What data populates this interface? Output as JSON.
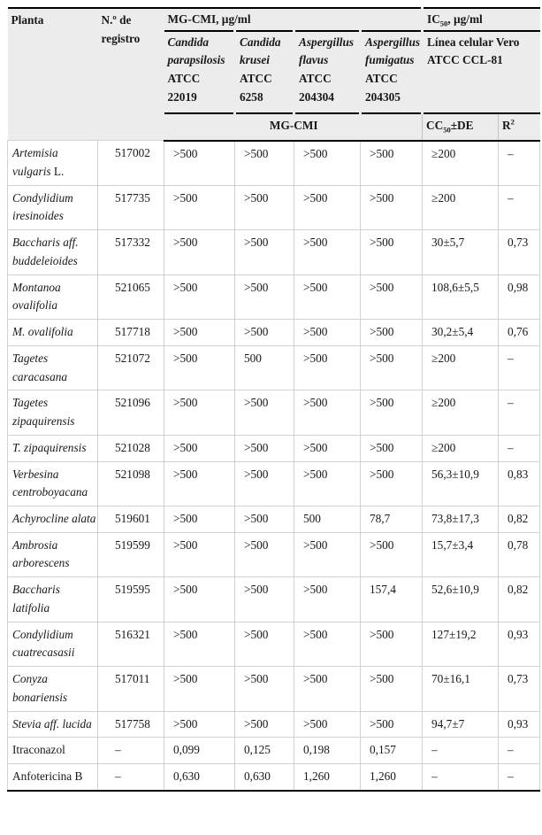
{
  "colors": {
    "header_background": "#ececec",
    "heavy_rule": "#000000",
    "grid_line": "#d2d2d2",
    "text": "#181818"
  },
  "table": {
    "header": {
      "planta": "Planta",
      "registro": "N.º de registro",
      "mgcmi_group": "MG-CMI, µg/ml",
      "ic50": {
        "base": "IC",
        "sub": "50",
        "rest": ", µg/ml"
      },
      "species": [
        {
          "italic": "Candida parapsilosis",
          "roman": "ATCC 22019"
        },
        {
          "italic": "Candida krusei",
          "roman": "ATCC 6258"
        },
        {
          "italic": "Aspergillus flavus",
          "roman": "ATCC 204304"
        },
        {
          "italic": "Aspergillus fumigatus",
          "roman": "ATCC 204305"
        }
      ],
      "vero": "Línea celular Vero ATCC CCL-81",
      "sub_mgcmi": "MG-CMI",
      "cc50": {
        "base": "CC",
        "sub": "50",
        "rest": "±DE"
      },
      "r2": {
        "base": "R",
        "sup": "2"
      }
    },
    "rows": [
      {
        "planta_italic": "Artemisia vulgaris",
        "planta_roman": "L.",
        "registro": "517002",
        "c_parapsilosis": ">500",
        "c_krusei": ">500",
        "a_flavus": ">500",
        "a_fumigatus": ">500",
        "cc50_de": "≥200",
        "r2": "–"
      },
      {
        "planta_italic": "Condylidium iresinoides",
        "planta_roman": "",
        "registro": "517735",
        "c_parapsilosis": ">500",
        "c_krusei": ">500",
        "a_flavus": ">500",
        "a_fumigatus": ">500",
        "cc50_de": "≥200",
        "r2": "–"
      },
      {
        "planta_italic": "Baccharis aff. buddeleioides",
        "planta_roman": "",
        "registro": "517332",
        "c_parapsilosis": ">500",
        "c_krusei": ">500",
        "a_flavus": ">500",
        "a_fumigatus": ">500",
        "cc50_de": "30±5,7",
        "r2": "0,73"
      },
      {
        "planta_italic": "Montanoa ovalifolia",
        "planta_roman": "",
        "registro": "521065",
        "c_parapsilosis": ">500",
        "c_krusei": ">500",
        "a_flavus": ">500",
        "a_fumigatus": ">500",
        "cc50_de": "108,6±5,5",
        "r2": "0,98"
      },
      {
        "planta_italic": "M. ovalifolia",
        "planta_roman": "",
        "registro": "517718",
        "c_parapsilosis": ">500",
        "c_krusei": ">500",
        "a_flavus": ">500",
        "a_fumigatus": ">500",
        "cc50_de": "30,2±5,4",
        "r2": "0,76"
      },
      {
        "planta_italic": "Tagetes caracasana",
        "planta_roman": "",
        "registro": "521072",
        "c_parapsilosis": ">500",
        "c_krusei": "500",
        "a_flavus": ">500",
        "a_fumigatus": ">500",
        "cc50_de": "≥200",
        "r2": "–"
      },
      {
        "planta_italic": "Tagetes zipaquirensis",
        "planta_roman": "",
        "registro": "521096",
        "c_parapsilosis": ">500",
        "c_krusei": ">500",
        "a_flavus": ">500",
        "a_fumigatus": ">500",
        "cc50_de": "≥200",
        "r2": "–"
      },
      {
        "planta_italic": "T. zipaquirensis",
        "planta_roman": "",
        "registro": "521028",
        "c_parapsilosis": ">500",
        "c_krusei": ">500",
        "a_flavus": ">500",
        "a_fumigatus": ">500",
        "cc50_de": "≥200",
        "r2": "–"
      },
      {
        "planta_italic": "Verbesina centroboyacana",
        "planta_roman": "",
        "registro": "521098",
        "c_parapsilosis": ">500",
        "c_krusei": ">500",
        "a_flavus": ">500",
        "a_fumigatus": ">500",
        "cc50_de": "56,3±10,9",
        "r2": "0,83"
      },
      {
        "planta_italic": "Achyrocline alata",
        "planta_roman": "",
        "registro": "519601",
        "c_parapsilosis": ">500",
        "c_krusei": ">500",
        "a_flavus": "500",
        "a_fumigatus": "78,7",
        "cc50_de": "73,8±17,3",
        "r2": "0,82"
      },
      {
        "planta_italic": "Ambrosia arborescens",
        "planta_roman": "",
        "registro": "519599",
        "c_parapsilosis": ">500",
        "c_krusei": ">500",
        "a_flavus": ">500",
        "a_fumigatus": ">500",
        "cc50_de": "15,7±3,4",
        "r2": "0,78"
      },
      {
        "planta_italic": "Baccharis latifolia",
        "planta_roman": "",
        "registro": "519595",
        "c_parapsilosis": ">500",
        "c_krusei": ">500",
        "a_flavus": ">500",
        "a_fumigatus": "157,4",
        "cc50_de": "52,6±10,9",
        "r2": "0,82"
      },
      {
        "planta_italic": "Condylidium cuatrecasasii",
        "planta_roman": "",
        "registro": "516321",
        "c_parapsilosis": ">500",
        "c_krusei": ">500",
        "a_flavus": ">500",
        "a_fumigatus": ">500",
        "cc50_de": "127±19,2",
        "r2": "0,93"
      },
      {
        "planta_italic": "Conyza bonariensis",
        "planta_roman": "",
        "registro": "517011",
        "c_parapsilosis": ">500",
        "c_krusei": ">500",
        "a_flavus": ">500",
        "a_fumigatus": ">500",
        "cc50_de": "70±16,1",
        "r2": "0,73"
      },
      {
        "planta_italic": "Stevia aff. lucida",
        "planta_roman": "",
        "registro": "517758",
        "c_parapsilosis": ">500",
        "c_krusei": ">500",
        "a_flavus": ">500",
        "a_fumigatus": ">500",
        "cc50_de": "94,7±7",
        "r2": "0,93"
      },
      {
        "planta_italic": "",
        "planta_roman": "Itraconazol",
        "registro": "–",
        "c_parapsilosis": "0,099",
        "c_krusei": "0,125",
        "a_flavus": "0,198",
        "a_fumigatus": "0,157",
        "cc50_de": "–",
        "r2": "–"
      },
      {
        "planta_italic": "",
        "planta_roman": "Anfotericina B",
        "registro": "–",
        "c_parapsilosis": "0,630",
        "c_krusei": "0,630",
        "a_flavus": "1,260",
        "a_fumigatus": "1,260",
        "cc50_de": "–",
        "r2": "–"
      }
    ]
  }
}
